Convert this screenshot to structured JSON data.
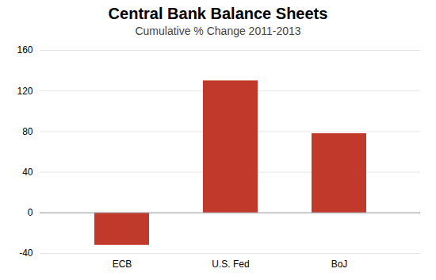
{
  "chart_data": {
    "type": "bar",
    "title": "Central Bank Balance Sheets",
    "subtitle": "Cumulative % Change 2011-2013",
    "categories": [
      "ECB",
      "U.S. Fed",
      "BoJ"
    ],
    "values": [
      -32,
      130,
      78
    ],
    "color": "#c0392b",
    "ylim": [
      -40,
      160
    ],
    "yticks": [
      -40,
      0,
      40,
      80,
      120,
      160
    ],
    "grid": true
  }
}
